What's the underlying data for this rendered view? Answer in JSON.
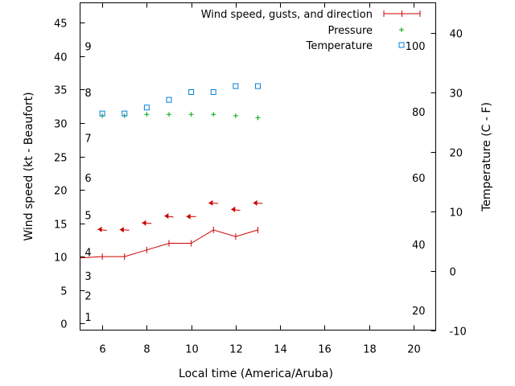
{
  "chart_data": {
    "type": "line",
    "xlabel": "Local time (America/Aruba)",
    "ylabel": "Wind speed (kt - Beaufort)",
    "y2label": "Temperature (C - F)",
    "xlim": [
      5,
      21
    ],
    "ylim": [
      -1,
      48
    ],
    "y2lim": [
      -10,
      45
    ],
    "x_ticks": [
      6,
      8,
      10,
      12,
      14,
      16,
      18,
      20
    ],
    "y_ticks": [
      0,
      5,
      10,
      15,
      20,
      25,
      30,
      35,
      40,
      45
    ],
    "y2_ticks": [
      -10,
      0,
      10,
      20,
      30,
      40
    ],
    "beaufort_labels": [
      {
        "text": "1",
        "y": 1
      },
      {
        "text": "2",
        "y": 4.2
      },
      {
        "text": "3",
        "y": 7.1
      },
      {
        "text": "4",
        "y": 10.7
      },
      {
        "text": "5",
        "y": 16.2
      },
      {
        "text": "6",
        "y": 21.8
      },
      {
        "text": "7",
        "y": 27.8
      },
      {
        "text": "8",
        "y": 34.6
      },
      {
        "text": "9",
        "y": 41.5
      }
    ],
    "fahrenheit_labels": [
      {
        "text": "20",
        "y2": -6.7
      },
      {
        "text": "40",
        "y2": 4.4
      },
      {
        "text": "60",
        "y2": 15.6
      },
      {
        "text": "80",
        "y2": 26.7
      },
      {
        "text": "100",
        "y2": 37.8
      }
    ],
    "legend": {
      "position": "top-right",
      "entries": [
        "Wind speed, gusts, and direction",
        "Pressure",
        "Temperature"
      ]
    },
    "series": [
      {
        "name": "Wind speed, gusts, and direction",
        "color": "#cc0000",
        "x": [
          5,
          6,
          7,
          8,
          9,
          10,
          11,
          12,
          13
        ],
        "values": [
          9.8,
          10,
          10,
          11,
          12,
          12,
          14,
          13,
          14
        ],
        "gust_y": [
          14,
          14,
          15,
          16,
          16,
          18,
          17,
          18
        ],
        "arrow_x": [
          6,
          7,
          8,
          9,
          10,
          11,
          12,
          13
        ],
        "arrow_dir_deg": [
          110,
          100,
          100,
          110,
          90,
          100,
          110,
          100
        ]
      },
      {
        "name": "Pressure",
        "color": "#00aa00",
        "x": [
          6,
          7,
          8,
          9,
          10,
          11,
          12,
          13
        ],
        "values": [
          31.1,
          31.1,
          31.3,
          31.3,
          31.3,
          31.3,
          31.1,
          30.8
        ]
      },
      {
        "name": "Temperature",
        "color": "#0080dd",
        "x": [
          6,
          7,
          8,
          9,
          10,
          11,
          12,
          13
        ],
        "values": [
          26.4,
          26.4,
          27.4,
          28.7,
          30.0,
          30.0,
          31.0,
          31.0
        ]
      }
    ]
  }
}
